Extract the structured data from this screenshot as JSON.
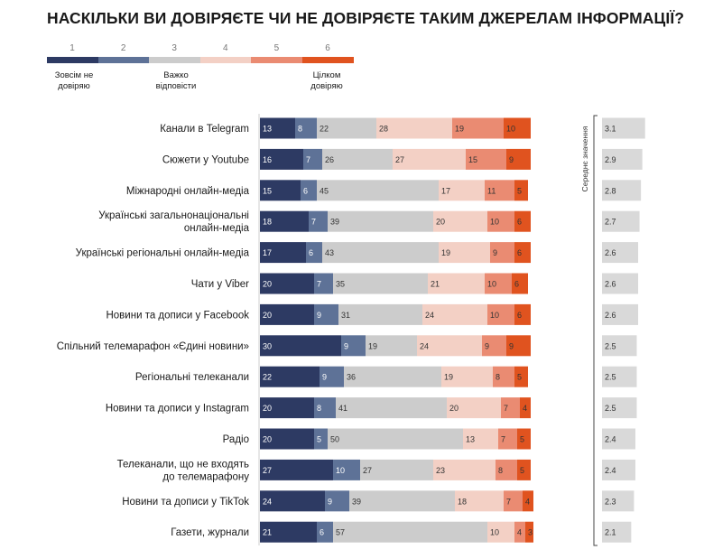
{
  "title": "НАСКІЛЬКИ ВИ ДОВІРЯЄТЕ ЧИ НЕ ДОВІРЯЄТЕ ТАКИМ ДЖЕРЕЛАМ ІНФОРМАЦІЇ?",
  "legend": {
    "scale": [
      "1",
      "2",
      "3",
      "4",
      "5",
      "6"
    ],
    "colors": [
      "#2d3a63",
      "#5e7297",
      "#cccccc",
      "#f3d0c5",
      "#ea8b72",
      "#e0531f"
    ],
    "label_low": "Зовсім не довіряю",
    "label_mid": "Важко відповісти",
    "label_high": "Цілком довіряю"
  },
  "avg_title": "Середнє значення",
  "chart_data": {
    "type": "bar",
    "orientation": "horizontal",
    "stacked": true,
    "unit": "%",
    "series_names": [
      "1",
      "2",
      "3",
      "4",
      "5",
      "6"
    ],
    "categories": [
      "Канали в Telegram",
      "Сюжети у Youtube",
      "Міжнародні онлайн-медіа",
      "Українські загальнонаціональні онлайн-медіа",
      "Українські регіональні онлайн-медіа",
      "Чати у Viber",
      "Новини та дописи у Facebook",
      "Спільний телемарафон «Єдині новини»",
      "Регіональні телеканали",
      "Новини та дописи у Instagram",
      "Радіо",
      "Телеканали, що не входять до телемарафону",
      "Новини та дописи у TikTok",
      "Газети, журнали"
    ],
    "label_lines": [
      [
        "Канали в Telegram"
      ],
      [
        "Сюжети у Youtube"
      ],
      [
        "Міжнародні онлайн-медіа"
      ],
      [
        "Українські загальнонаціональні",
        "онлайн-медіа"
      ],
      [
        "Українські регіональні онлайн-медіа"
      ],
      [
        "Чати у Viber"
      ],
      [
        "Новини та дописи у Facebook"
      ],
      [
        "Спільний телемарафон «Єдині новини»"
      ],
      [
        "Регіональні телеканали"
      ],
      [
        "Новини та дописи у Instagram"
      ],
      [
        "Радіо"
      ],
      [
        "Телеканали, що не входять",
        "до телемарафону"
      ],
      [
        "Новини та дописи у TikTok"
      ],
      [
        "Газети, журнали"
      ]
    ],
    "values": [
      [
        13,
        8,
        22,
        28,
        19,
        10
      ],
      [
        16,
        7,
        26,
        27,
        15,
        9
      ],
      [
        15,
        6,
        45,
        17,
        11,
        5
      ],
      [
        18,
        7,
        39,
        20,
        10,
        6
      ],
      [
        17,
        6,
        43,
        19,
        9,
        6
      ],
      [
        20,
        7,
        35,
        21,
        10,
        6
      ],
      [
        20,
        9,
        31,
        24,
        10,
        6
      ],
      [
        30,
        9,
        19,
        24,
        9,
        9
      ],
      [
        22,
        9,
        36,
        19,
        8,
        5
      ],
      [
        20,
        8,
        41,
        20,
        7,
        4
      ],
      [
        20,
        5,
        50,
        13,
        7,
        5
      ],
      [
        27,
        10,
        27,
        23,
        8,
        5
      ],
      [
        24,
        9,
        39,
        18,
        7,
        4
      ],
      [
        21,
        6,
        57,
        10,
        4,
        3
      ]
    ],
    "averages": [
      3.1,
      2.9,
      2.8,
      2.7,
      2.6,
      2.6,
      2.6,
      2.5,
      2.5,
      2.5,
      2.4,
      2.4,
      2.3,
      2.1
    ],
    "avg_display": [
      "3.1",
      "2.9",
      "2.8",
      "2.7",
      "2.6",
      "2.6",
      "2.6",
      "2.5",
      "2.5",
      "2.5",
      "2.4",
      "2.4",
      "2.3",
      "2.1"
    ],
    "avg_range": [
      0,
      3.5
    ],
    "label_colors": [
      "#ffffff",
      "#ffffff",
      "#333333",
      "#333333",
      "#333333",
      "#333333"
    ]
  }
}
